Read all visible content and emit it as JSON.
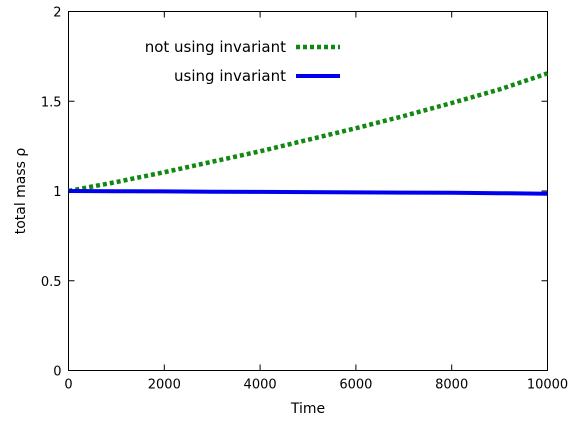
{
  "chart_data": {
    "type": "line",
    "title": "",
    "xlabel": "Time",
    "ylabel": "total mass ρ",
    "xlim": [
      0,
      10000
    ],
    "ylim": [
      0,
      2
    ],
    "x_ticks": [
      0,
      2000,
      4000,
      6000,
      8000,
      10000
    ],
    "x_tick_labels": [
      "0",
      "2000",
      "4000",
      "6000",
      "8000",
      "10000"
    ],
    "y_ticks": [
      0,
      0.5,
      1,
      1.5,
      2
    ],
    "y_tick_labels": [
      "0",
      "0.5",
      "1",
      "1.5",
      "2"
    ],
    "grid": false,
    "legend_position": "top-left",
    "x": [
      0,
      1000,
      2000,
      3000,
      4000,
      5000,
      6000,
      7000,
      8000,
      9000,
      10000
    ],
    "series": [
      {
        "name": "not using invariant",
        "style": "dotted",
        "color": "#118811",
        "values": [
          1.0,
          1.05,
          1.105,
          1.163,
          1.221,
          1.285,
          1.35,
          1.418,
          1.49,
          1.566,
          1.655
        ]
      },
      {
        "name": "using invariant",
        "style": "solid",
        "color": "#0000ee",
        "values": [
          1.0,
          0.999,
          0.998,
          0.996,
          0.995,
          0.994,
          0.992,
          0.991,
          0.99,
          0.988,
          0.985
        ]
      }
    ]
  }
}
